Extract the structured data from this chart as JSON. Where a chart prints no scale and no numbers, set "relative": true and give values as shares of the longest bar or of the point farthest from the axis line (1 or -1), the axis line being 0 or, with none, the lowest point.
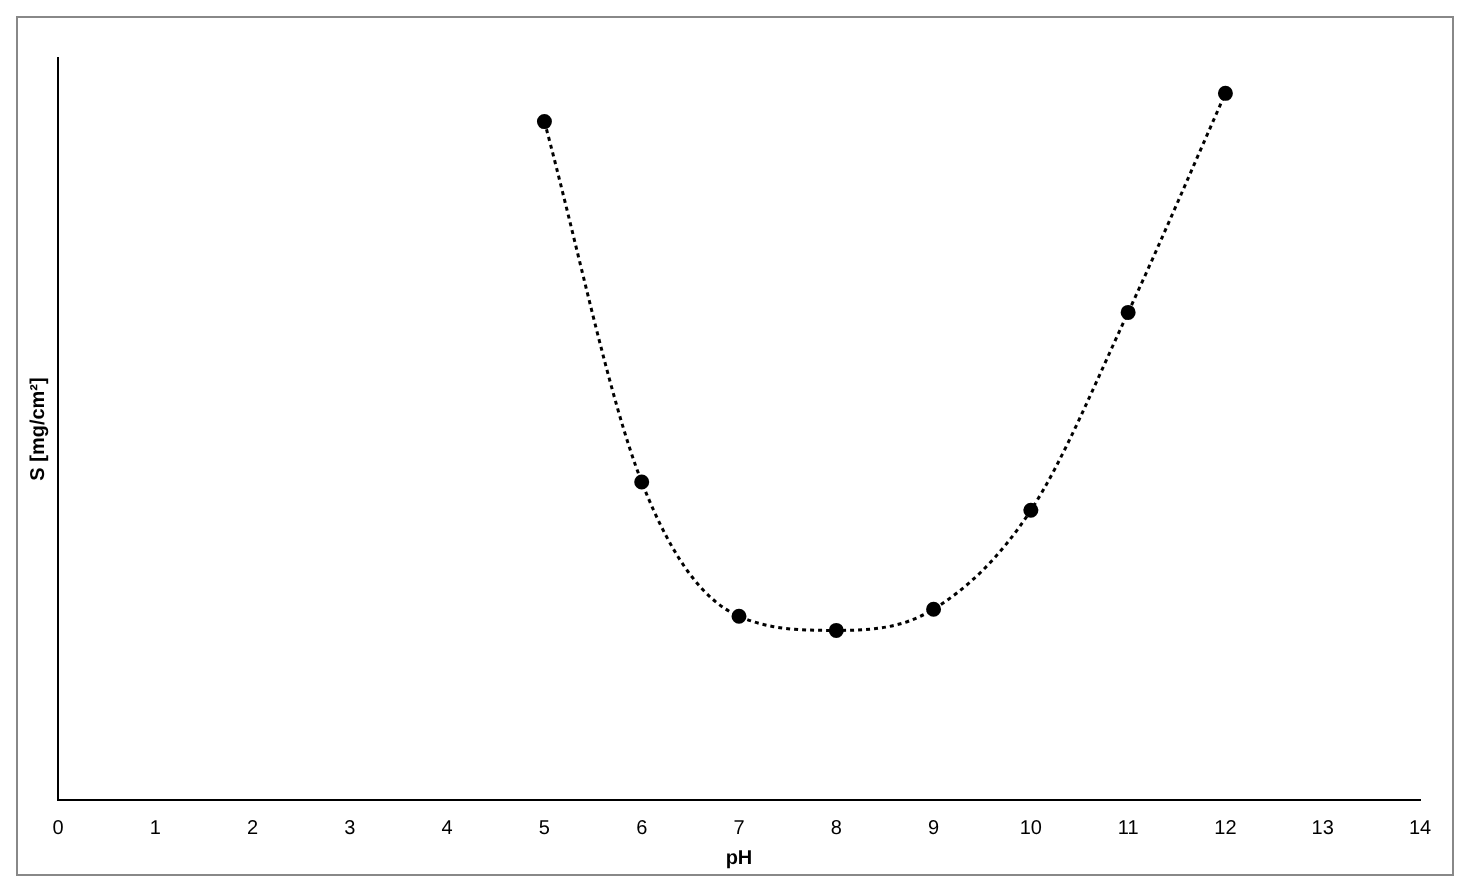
{
  "chart_data": {
    "type": "line",
    "xlabel": "pH",
    "ylabel": "S [mg/cm²]",
    "relative": true,
    "x": [
      5,
      6,
      7,
      8,
      9,
      10,
      11,
      12
    ],
    "series": [
      {
        "color": "#000000",
        "values": [
          0.96,
          0.45,
          0.26,
          0.24,
          0.27,
          0.41,
          0.69,
          1
        ]
      }
    ],
    "xlim": [
      0,
      14
    ],
    "xticks": [
      0,
      1,
      2,
      3,
      4,
      5,
      6,
      7,
      8,
      9,
      10,
      11,
      12,
      13,
      14
    ],
    "marker": "circle",
    "line_style": "dotted",
    "legend": false,
    "grid": false
  }
}
